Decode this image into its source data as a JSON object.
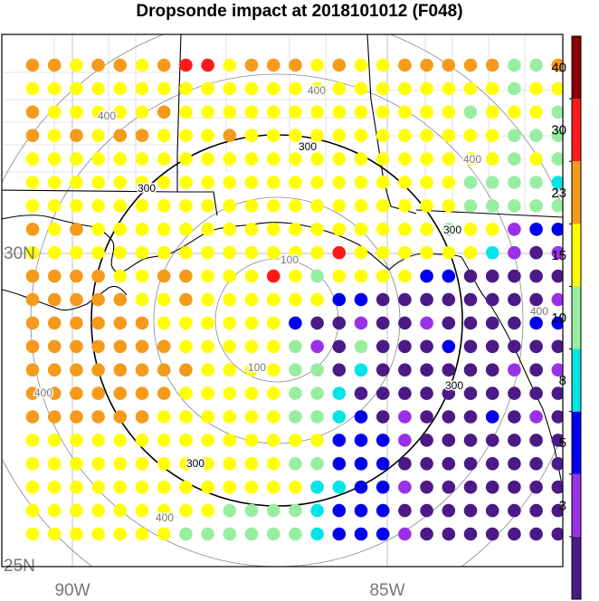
{
  "title": "Dropsonde impact at 2018101012 (F048)",
  "map": {
    "lat_labels": [
      {
        "text": "30N",
        "lat": 30
      },
      {
        "text": "25N",
        "lat": 25
      }
    ],
    "lon_labels": [
      {
        "text": "90W",
        "lon": -90
      },
      {
        "text": "85W",
        "lon": -85
      }
    ],
    "range_ring_labels": [
      "100",
      "100",
      "300",
      "300",
      "300",
      "300",
      "300",
      "400",
      "400",
      "400",
      "400",
      "400",
      "400"
    ],
    "rings_km": [
      100,
      200,
      300,
      400
    ],
    "bold_ring_km": 300,
    "colors": {
      "ring": "#888888",
      "bold_ring": "#000000",
      "grid": "#aaaaaa",
      "state_lines": "#cccccc",
      "coast": "#000000"
    }
  },
  "colorbar": {
    "labels": [
      "3",
      "5",
      "8",
      "10",
      "15",
      "23",
      "30",
      "40"
    ],
    "bins": [
      {
        "color": "#4b1a86"
      },
      {
        "color": "#9b30e8"
      },
      {
        "color": "#0000ee"
      },
      {
        "color": "#00e5e5"
      },
      {
        "color": "#98eea0"
      },
      {
        "color": "#ffff00"
      },
      {
        "color": "#f59a1a"
      },
      {
        "color": "#ff1a1a"
      },
      {
        "color": "#8b0000"
      }
    ]
  },
  "palette_key": "p=purple-dark, v=violet, b=blue, c=cyan, g=light-green, y=yellow, o=orange, r=red",
  "impact_grid": [
    "ooyooyorryoooyoyyoooooggooo",
    "yyyyyyyyyyyyyyyyyyyyyygyyyy",
    "oyyyyyoyyyyyyyyyyyyygyyyggy",
    "oyoyooyyyoyyyyyyyyyyyyggggg",
    "yyyyyyyyyyyyyyyyyyyyyygyggg",
    "yyyyyyyyyyyyyyyyyyyyggggccg",
    "yyyyyyyyyyyyyyyyyyyygggggbb",
    "oyoyyyyyyyyyyyyyyyygyyvbbbc",
    "yyyyyyyyyyyyyyryyyyyycvpvvp",
    "ooooyyooyyyrygyyyybbppppppp",
    "oooooyyoyyyyyybbppppppppvpp",
    "ooooooyyyyyybppvppvppppbbpp",
    "oooooooyyyyygvpgpppbppppppp",
    "ooooooooyyyyggpcppppppvpvpp",
    "oooooooyyyyyggcpppppppppppp",
    "ooooooyyyyyyggcbpvpppbpvppp",
    "yyyyyyyyyyyyyybbbvpppppppbp",
    "yyyyyyyyyyyyggbbbpppppppppp",
    "yyyyyyyyyyyyyccbbvppppppppp",
    "yyyyyyyyyggggcbbbpppppppppp",
    "yyyyyyyggggggcbbbvppppppppp"
  ]
}
